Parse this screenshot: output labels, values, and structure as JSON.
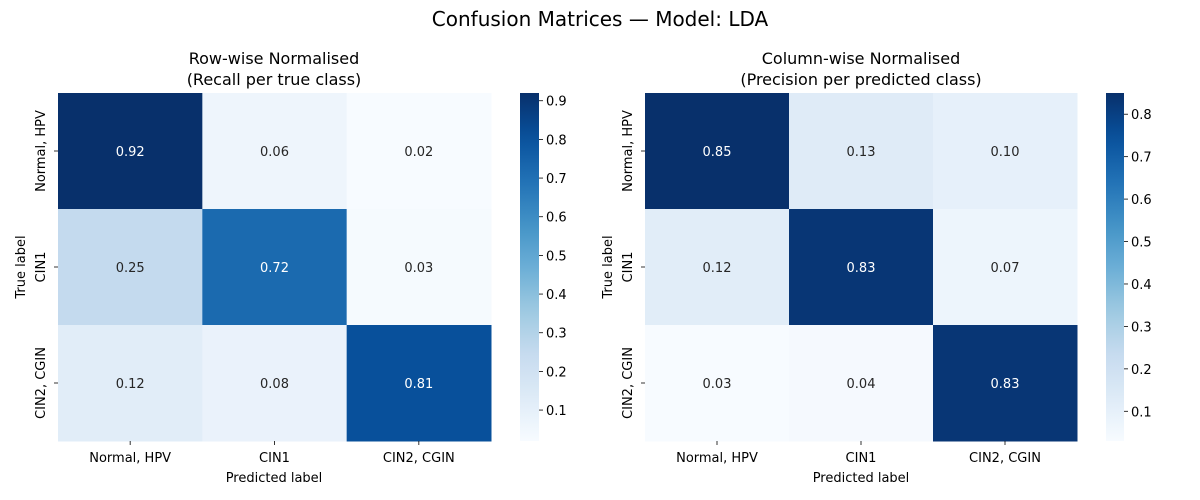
{
  "figure": {
    "title": "Confusion Matrices — Model: LDA"
  },
  "chart_data": [
    {
      "type": "heatmap",
      "title_line1": "Row-wise Normalised",
      "title_line2": "(Recall per true class)",
      "xlabel": "Predicted label",
      "ylabel": "True label",
      "x_categories": [
        "Normal, HPV",
        "CIN1",
        "CIN2, CGIN"
      ],
      "y_categories": [
        "Normal, HPV",
        "CIN1",
        "CIN2, CGIN"
      ],
      "values": [
        [
          0.92,
          0.06,
          0.02
        ],
        [
          0.25,
          0.72,
          0.03
        ],
        [
          0.12,
          0.08,
          0.81
        ]
      ],
      "annotations": [
        [
          "0.92",
          "0.06",
          "0.02"
        ],
        [
          "0.25",
          "0.72",
          "0.03"
        ],
        [
          "0.12",
          "0.08",
          "0.81"
        ]
      ],
      "colormap": "Blues",
      "vmin": 0.02,
      "vmax": 0.92,
      "colorbar_ticks": [
        0.1,
        0.2,
        0.3,
        0.4,
        0.5,
        0.6,
        0.7,
        0.8,
        0.9
      ],
      "colorbar_tick_labels": [
        "0.1",
        "0.2",
        "0.3",
        "0.4",
        "0.5",
        "0.6",
        "0.7",
        "0.8",
        "0.9"
      ]
    },
    {
      "type": "heatmap",
      "title_line1": "Column-wise Normalised",
      "title_line2": "(Precision per predicted class)",
      "xlabel": "Predicted label",
      "ylabel": "True label",
      "x_categories": [
        "Normal, HPV",
        "CIN1",
        "CIN2, CGIN"
      ],
      "y_categories": [
        "Normal, HPV",
        "CIN1",
        "CIN2, CGIN"
      ],
      "values": [
        [
          0.85,
          0.13,
          0.1
        ],
        [
          0.12,
          0.83,
          0.07
        ],
        [
          0.03,
          0.04,
          0.83
        ]
      ],
      "annotations": [
        [
          "0.85",
          "0.13",
          "0.10"
        ],
        [
          "0.12",
          "0.83",
          "0.07"
        ],
        [
          "0.03",
          "0.04",
          "0.83"
        ]
      ],
      "colormap": "Blues",
      "vmin": 0.03,
      "vmax": 0.85,
      "colorbar_ticks": [
        0.1,
        0.2,
        0.3,
        0.4,
        0.5,
        0.6,
        0.7,
        0.8
      ],
      "colorbar_tick_labels": [
        "0.1",
        "0.2",
        "0.3",
        "0.4",
        "0.5",
        "0.6",
        "0.7",
        "0.8"
      ]
    }
  ]
}
